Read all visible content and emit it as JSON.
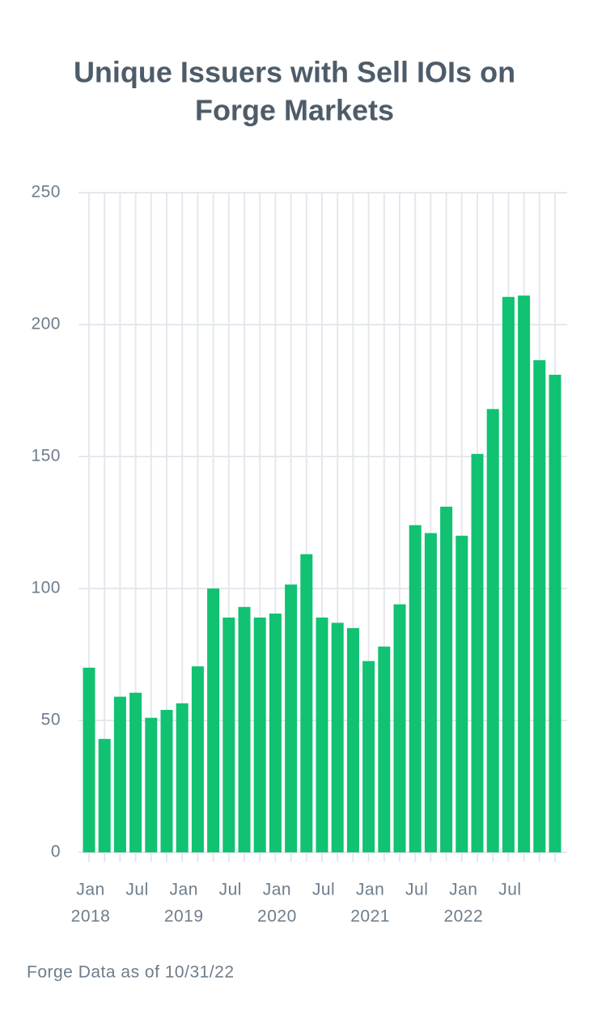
{
  "chart_data": {
    "type": "bar",
    "title": [
      "Unique Issuers with Sell IOIs on",
      "Forge Markets"
    ],
    "footnote": "Forge Data as of 10/31/22",
    "categories": [
      [
        "Jan",
        "2018"
      ],
      null,
      null,
      [
        "Jul"
      ],
      null,
      null,
      [
        "Jan",
        "2019"
      ],
      null,
      null,
      [
        "Jul"
      ],
      null,
      null,
      [
        "Jan",
        "2020"
      ],
      null,
      null,
      [
        "Jul"
      ],
      null,
      null,
      [
        "Jan",
        "2021"
      ],
      null,
      null,
      [
        "Jul"
      ],
      null,
      null,
      [
        "Jan",
        "2022"
      ],
      null,
      null,
      [
        "Jul"
      ],
      null,
      null,
      null
    ],
    "values": [
      70,
      43,
      59,
      60.5,
      51,
      54,
      56.5,
      70.5,
      100,
      89,
      93,
      89,
      90.5,
      101.5,
      113,
      89,
      87,
      85,
      72.5,
      78,
      94,
      124,
      121,
      131,
      120,
      151,
      168,
      210.5,
      211,
      186.5,
      181
    ],
    "color": "#10c271",
    "ylim": [
      0,
      250
    ],
    "yticks": [
      0,
      50,
      100,
      150,
      200,
      250
    ],
    "grid": true
  }
}
